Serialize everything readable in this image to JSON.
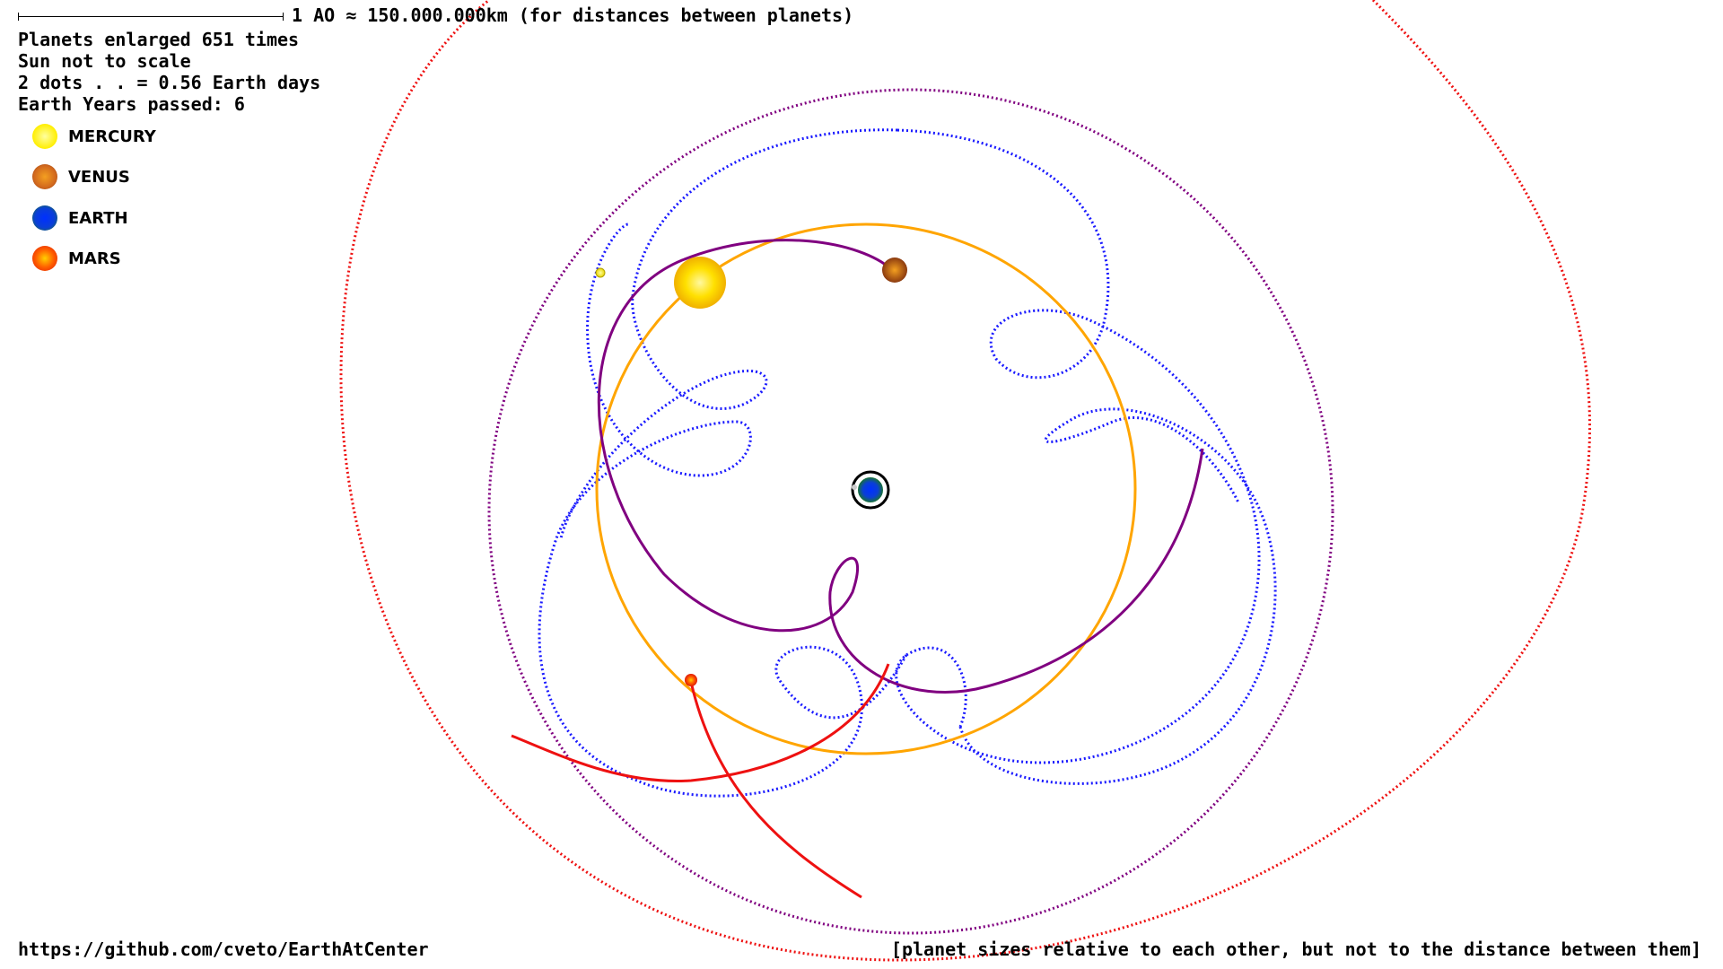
{
  "scale": {
    "label": "1 AO ≈ 150.000.000km (for distances between planets)"
  },
  "info": {
    "enlarged": "Planets enlarged 651 times",
    "sun_scale": "Sun not to scale",
    "dots": "2 dots . . = 0.56 Earth days",
    "years": "Earth Years passed: 6"
  },
  "legend": [
    {
      "label": "MERCURY",
      "color": "#ffee00",
      "edge": "#e8d400"
    },
    {
      "label": "VENUS",
      "color": "#d2691e",
      "edge": "#8b3a0f"
    },
    {
      "label": "EARTH",
      "color": "#0a3fd6",
      "edge": "#1a7a1a"
    },
    {
      "label": "MARS",
      "color": "#ff3a00",
      "edge": "#e02000"
    }
  ],
  "footer": {
    "link": "https://github.com/cveto/EarthAtCenter",
    "note": "[planet sizes relative to each other, but not to the distance between them]"
  },
  "colors": {
    "sun_orbit": "#ffa500",
    "mercury_path": "#1a1aff",
    "venus_path": "#800080",
    "mars_path": "#ee1111",
    "sun": "#ffd700"
  }
}
